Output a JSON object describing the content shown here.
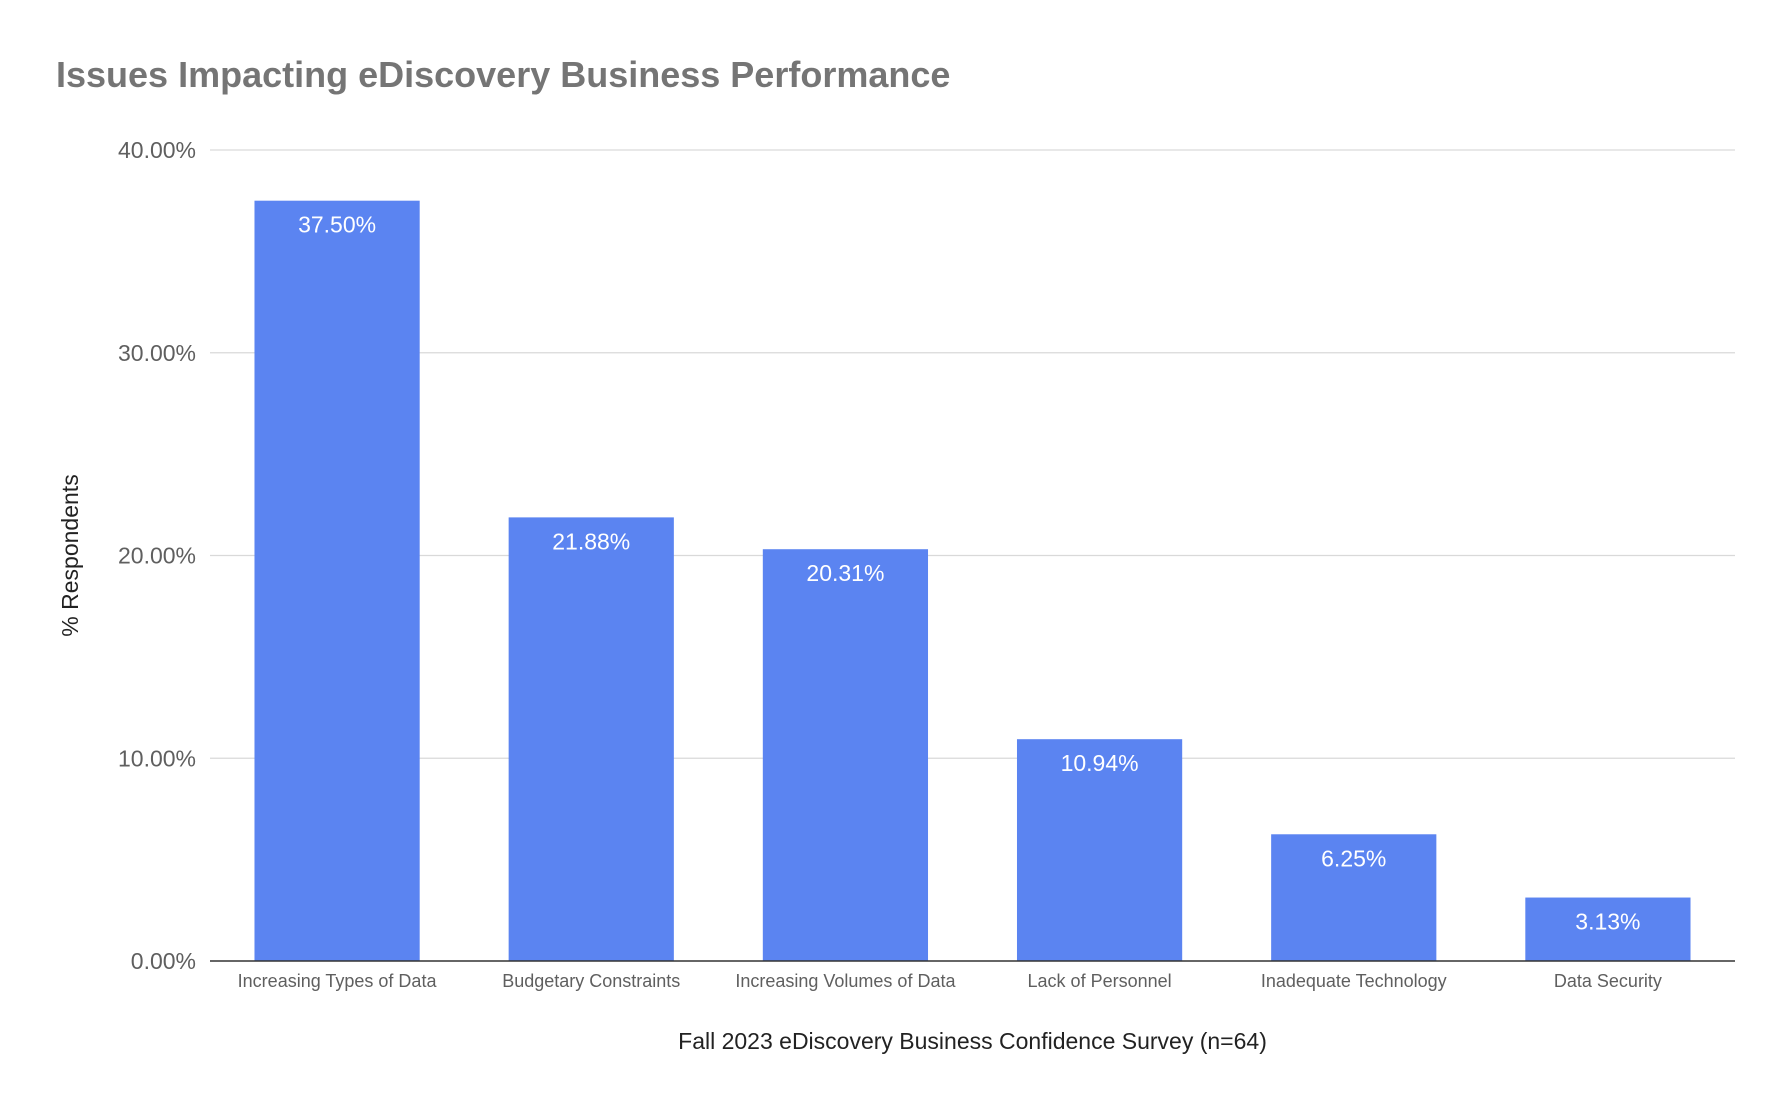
{
  "chart_data": {
    "type": "bar",
    "title": "Issues Impacting eDiscovery Business Performance",
    "xlabel": "Fall 2023 eDiscovery Business Confidence Survey (n=64)",
    "ylabel": "% Respondents",
    "categories": [
      "Increasing Types of Data",
      "Budgetary Constraints",
      "Increasing Volumes of Data",
      "Lack of Personnel",
      "Inadequate Technology",
      "Data Security"
    ],
    "values": [
      37.5,
      21.88,
      20.31,
      10.94,
      6.25,
      3.13
    ],
    "data_labels": [
      "37.50%",
      "21.88%",
      "20.31%",
      "10.94%",
      "6.25%",
      "3.13%"
    ],
    "ylim": [
      0,
      40
    ],
    "yticks": [
      0,
      10,
      20,
      30,
      40
    ],
    "ytick_labels": [
      "0.00%",
      "10.00%",
      "20.00%",
      "30.00%",
      "40.00%"
    ],
    "grid": true,
    "legend": "none",
    "bar_color": "#5b84f1"
  }
}
